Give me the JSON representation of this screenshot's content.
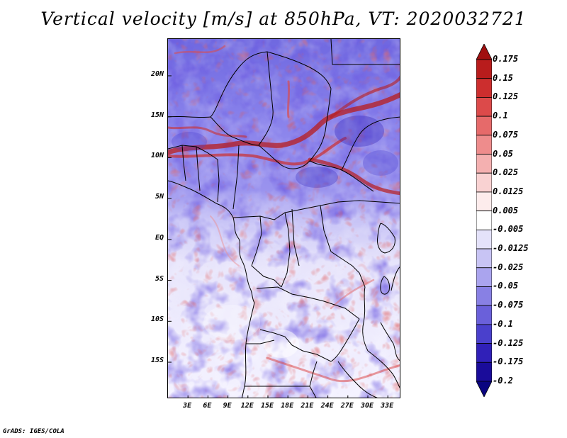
{
  "title": "Vertical velocity [m/s] at 850hPa, VT: 2020032721",
  "credit": "GrADS: IGES/COLA",
  "map": {
    "field": "vertical velocity",
    "level": "850hPa",
    "valid_time": "2020032721",
    "lon_range": [
      0,
      35
    ],
    "lat_range": [
      -19.5,
      24.5
    ],
    "y_ticks": [
      {
        "label": "20N",
        "lat": 20
      },
      {
        "label": "15N",
        "lat": 15
      },
      {
        "label": "10N",
        "lat": 10
      },
      {
        "label": "5N",
        "lat": 5
      },
      {
        "label": "EQ",
        "lat": 0
      },
      {
        "label": "5S",
        "lat": -5
      },
      {
        "label": "10S",
        "lat": -10
      },
      {
        "label": "15S",
        "lat": -15
      }
    ],
    "x_ticks": [
      {
        "label": "3E",
        "lon": 3
      },
      {
        "label": "6E",
        "lon": 6
      },
      {
        "label": "9E",
        "lon": 9
      },
      {
        "label": "12E",
        "lon": 12
      },
      {
        "label": "15E",
        "lon": 15
      },
      {
        "label": "18E",
        "lon": 18
      },
      {
        "label": "21E",
        "lon": 21
      },
      {
        "label": "24E",
        "lon": 24
      },
      {
        "label": "27E",
        "lon": 27
      },
      {
        "label": "30E",
        "lon": 30
      },
      {
        "label": "33E",
        "lon": 33
      }
    ]
  },
  "colorbar": {
    "levels": [
      "0.175",
      "0.15",
      "0.125",
      "0.1",
      "0.075",
      "0.05",
      "0.025",
      "0.0125",
      "0.005",
      "-0.005",
      "-0.0125",
      "-0.025",
      "-0.05",
      "-0.075",
      "-0.1",
      "-0.125",
      "-0.175",
      "-0.2"
    ],
    "colors": [
      "#a01010",
      "#b81c1c",
      "#cc2e2e",
      "#dc4a4a",
      "#e66a6a",
      "#ee8c8c",
      "#f4b0b0",
      "#f9d2d2",
      "#fdecec",
      "#ffffff",
      "#e4e2fa",
      "#c8c4f4",
      "#aaa4ee",
      "#8880e4",
      "#6a60da",
      "#4a40cc",
      "#3020b8",
      "#1a0c9a",
      "#0a0480"
    ]
  }
}
